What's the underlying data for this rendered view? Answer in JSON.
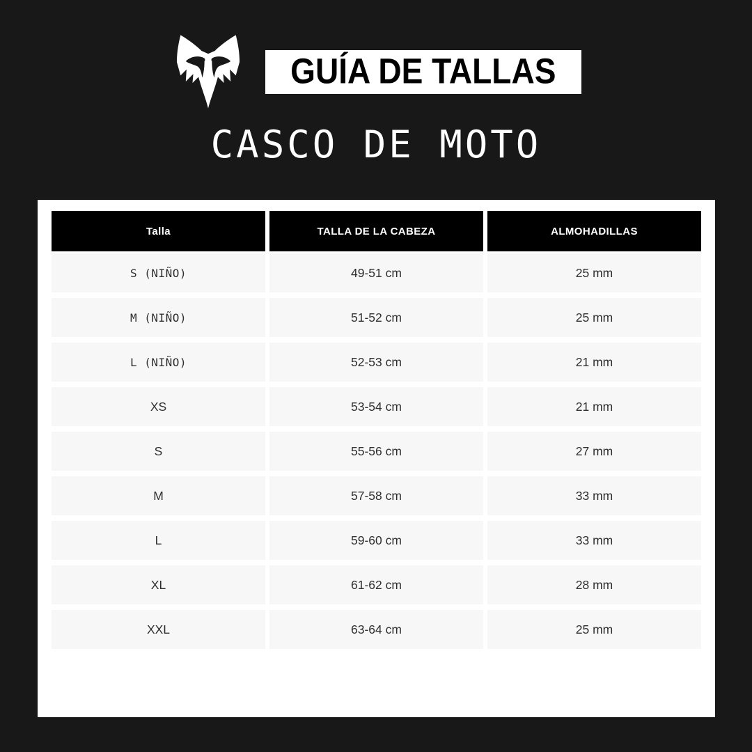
{
  "page": {
    "background": "#181818"
  },
  "header": {
    "logo": "fox-racing-fox-head",
    "badge_label": "GUÍA DE TALLAS",
    "title": "CASCO DE MOTO"
  },
  "chart_data": {
    "type": "table",
    "title": "GUÍA DE TALLAS",
    "subtitle": "CASCO DE MOTO",
    "columns": [
      "Talla",
      "TALLA DE LA CABEZA",
      "ALMOHADILLAS"
    ],
    "rows": [
      [
        "S (NIÑO)",
        "49-51 cm",
        "25 mm"
      ],
      [
        "M (NIÑO)",
        "51-52 cm",
        "25 mm"
      ],
      [
        "L (NIÑO)",
        "52-53 cm",
        "21 mm"
      ],
      [
        "XS",
        "53-54 cm",
        "21 mm"
      ],
      [
        "S",
        "55-56 cm",
        "27 mm"
      ],
      [
        "M",
        "57-58 cm",
        "33 mm"
      ],
      [
        "L",
        "59-60 cm",
        "33 mm"
      ],
      [
        "XL",
        "61-62 cm",
        "28 mm"
      ],
      [
        "XXL",
        "63-64 cm",
        "25 mm"
      ]
    ]
  },
  "colors": {
    "background": "#181818",
    "panel": "#ffffff",
    "table_header_bg": "#000000",
    "table_header_text": "#ffffff",
    "row_bg": "#f7f7f7",
    "row_text": "#2e2e2e",
    "badge_bg": "#ffffff",
    "badge_text": "#000000",
    "title_text": "#ffffff",
    "logo_color": "#ffffff"
  }
}
